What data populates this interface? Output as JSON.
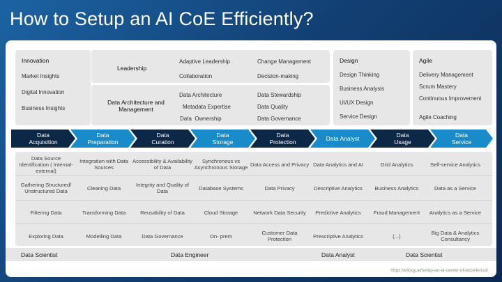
{
  "title": "How to Setup an AI CoE Efficiently?",
  "innovation": {
    "heading": "Innovation",
    "items": [
      "Market Insights",
      "Digital Innovation",
      "Business Insights"
    ]
  },
  "leadership": {
    "heading": "Leadership",
    "items": [
      "Adaptive Leadership",
      "Change Management",
      "Collaboration",
      "Decision-making"
    ]
  },
  "data_architecture": {
    "heading": "Data Architecture and Management",
    "items": [
      "Data Architecture",
      "Data Stewardship",
      "Metadata Expertise",
      "Data Quality",
      "Data  Ownership",
      "Data Governance"
    ]
  },
  "design": {
    "heading": "Design",
    "items": [
      "Design Thinking",
      "Business Analysis",
      "UI/UX Design",
      "Service Design"
    ]
  },
  "agile": {
    "heading": "Agile",
    "items": [
      "Delivery Management",
      "Scrum Mastery",
      "Continuous Improvement",
      "Agile Coaching"
    ]
  },
  "pipeline": [
    {
      "label": "Data Acquisition",
      "style": "dark"
    },
    {
      "label": "Data Preparation",
      "style": "light"
    },
    {
      "label": "Data Curation",
      "style": "dark"
    },
    {
      "label": "Data Storage",
      "style": "light"
    },
    {
      "label": "Data Protection",
      "style": "dark"
    },
    {
      "label": "Data Analyst",
      "style": "light"
    },
    {
      "label": "Data Usage",
      "style": "dark"
    },
    {
      "label": "Data Service",
      "style": "light"
    }
  ],
  "grid": [
    [
      "Data Source Identification ( Internal-external)",
      "Integration with Data Sources",
      "Accessibility & Availability of Data",
      "Synchronous vs Asynchronous Storage",
      "Data Access and Privacy",
      "Data Analytics and AI",
      "Grid Analytics",
      "Self-service Analytics"
    ],
    [
      "Gathering Structured/ Unstructured Data",
      "Cleaning Data",
      "Integrity and Quality of Data",
      "Database Systems",
      "Data Privacy",
      "Descriptive Analytics",
      "Business Analytics",
      "Data as a Service"
    ],
    [
      "Filtering Data",
      "Transforming Data",
      "Reusability of Data",
      "Cloud Storage",
      "Network Data Security",
      "Predictive Analytics",
      "Fraud Management",
      "Analytics as a Service"
    ],
    [
      "Exploring Data",
      "Modelling Data",
      "Data Governance",
      "On- prem",
      "Customer Data Protection",
      "Prescriptive Analytics",
      "(...)",
      "Big Data & Analytics Consultancy"
    ]
  ],
  "roles": [
    "Data Scientist",
    "Data Engineer",
    "Data Analyst",
    "Data Scientist"
  ],
  "url": "https://elloqy.ai/setup-an-ai-center-of-excellence/"
}
